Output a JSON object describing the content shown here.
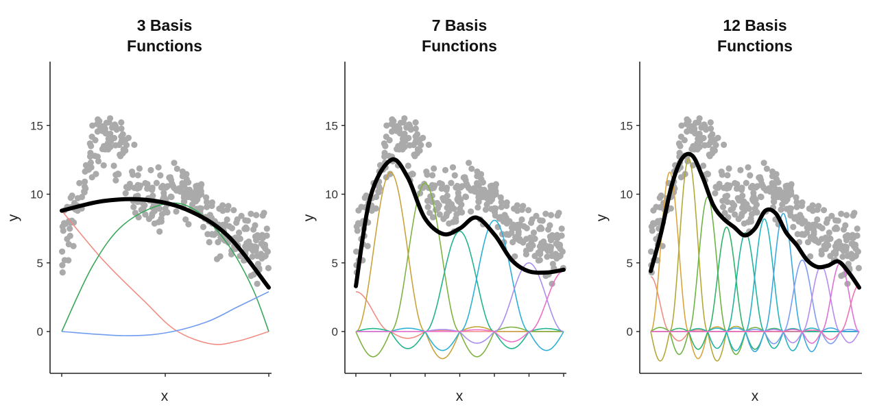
{
  "chart_data": [
    {
      "type": "line",
      "title_line1": "3 Basis",
      "title_line2": "Functions",
      "xlabel": "x",
      "ylabel": "y",
      "ylim": [
        -3,
        19.5
      ],
      "y_ticks": [
        0,
        5,
        10,
        15
      ],
      "x_ticks": 3,
      "grid": false,
      "legend": "none",
      "n_basis": 3,
      "fit_color": "#000000",
      "fit": [
        [
          0,
          8.8
        ],
        [
          0.2,
          9.5
        ],
        [
          0.4,
          9.6
        ],
        [
          0.6,
          8.9
        ],
        [
          0.8,
          7.0
        ],
        [
          1,
          3.2
        ]
      ],
      "basis": [
        {
          "color": "#f08c82",
          "values": [
            [
              0,
              8.8
            ],
            [
              0.2,
              5.2
            ],
            [
              0.4,
              2.2
            ],
            [
              0.55,
              0.1
            ],
            [
              0.72,
              -0.9
            ],
            [
              0.85,
              -0.7
            ],
            [
              1,
              0
            ]
          ]
        },
        {
          "color": "#3aa85a",
          "values": [
            [
              0,
              0
            ],
            [
              0.15,
              4.8
            ],
            [
              0.3,
              7.8
            ],
            [
              0.5,
              9.3
            ],
            [
              0.65,
              8.8
            ],
            [
              0.8,
              6.4
            ],
            [
              0.92,
              3.2
            ],
            [
              1,
              0
            ]
          ]
        },
        {
          "color": "#6f9bf0",
          "values": [
            [
              0,
              0
            ],
            [
              0.3,
              -0.3
            ],
            [
              0.5,
              -0.1
            ],
            [
              0.7,
              0.7
            ],
            [
              0.85,
              1.8
            ],
            [
              1,
              2.9
            ]
          ]
        }
      ]
    },
    {
      "type": "line",
      "title_line1": "7 Basis",
      "title_line2": "Functions",
      "xlabel": "x",
      "ylabel": "y",
      "ylim": [
        -3,
        19.5
      ],
      "y_ticks": [
        0,
        5,
        10,
        15
      ],
      "x_ticks": 7,
      "grid": false,
      "legend": "none",
      "n_basis": 7,
      "fit_color": "#000000",
      "fit": [
        [
          0,
          3.3
        ],
        [
          0.07,
          9.8
        ],
        [
          0.17,
          12.5
        ],
        [
          0.25,
          11.2
        ],
        [
          0.33,
          8.3
        ],
        [
          0.42,
          7.1
        ],
        [
          0.5,
          7.5
        ],
        [
          0.58,
          8.3
        ],
        [
          0.67,
          7.0
        ],
        [
          0.75,
          5.2
        ],
        [
          0.83,
          4.4
        ],
        [
          0.92,
          4.3
        ],
        [
          1,
          4.5
        ]
      ],
      "basis": [
        {
          "color": "#f08c82",
          "peak": 0.0,
          "amp": 2.9
        },
        {
          "color": "#c9a23a",
          "peak": 0.167,
          "amp": 11.6
        },
        {
          "color": "#7fb241",
          "peak": 0.333,
          "amp": 10.8
        },
        {
          "color": "#20b48c",
          "peak": 0.5,
          "amp": 7.3
        },
        {
          "color": "#2cb0d6",
          "peak": 0.667,
          "amp": 8.1
        },
        {
          "color": "#a98ef0",
          "peak": 0.833,
          "amp": 5.0
        },
        {
          "color": "#ec70c8",
          "peak": 1.0,
          "amp": 4.4
        }
      ]
    },
    {
      "type": "line",
      "title_line1": "12 Basis",
      "title_line2": "Functions",
      "xlabel": "x",
      "ylabel": "y",
      "ylim": [
        -3,
        19.5
      ],
      "y_ticks": [
        0,
        5,
        10,
        15
      ],
      "x_ticks": 0,
      "grid": false,
      "legend": "none",
      "n_basis": 12,
      "fit_color": "#000000",
      "fit": [
        [
          0,
          4.4
        ],
        [
          0.05,
          7.2
        ],
        [
          0.1,
          10.6
        ],
        [
          0.15,
          12.6
        ],
        [
          0.2,
          12.8
        ],
        [
          0.25,
          11.2
        ],
        [
          0.3,
          9.2
        ],
        [
          0.35,
          8.2
        ],
        [
          0.4,
          7.6
        ],
        [
          0.45,
          7.0
        ],
        [
          0.5,
          7.5
        ],
        [
          0.55,
          8.8
        ],
        [
          0.6,
          8.6
        ],
        [
          0.65,
          7.2
        ],
        [
          0.7,
          6.3
        ],
        [
          0.75,
          5.2
        ],
        [
          0.8,
          4.7
        ],
        [
          0.85,
          4.8
        ],
        [
          0.9,
          5.1
        ],
        [
          0.95,
          4.3
        ],
        [
          1,
          3.2
        ]
      ],
      "basis": [
        {
          "color": "#f08c82",
          "peak": 0.0,
          "amp": 4.0
        },
        {
          "color": "#d9a53a",
          "peak": 0.091,
          "amp": 11.6
        },
        {
          "color": "#b3a836",
          "peak": 0.182,
          "amp": 12.6
        },
        {
          "color": "#6db442",
          "peak": 0.273,
          "amp": 9.8
        },
        {
          "color": "#2fb36a",
          "peak": 0.364,
          "amp": 7.6
        },
        {
          "color": "#1fb39e",
          "peak": 0.455,
          "amp": 7.2
        },
        {
          "color": "#22b4c0",
          "peak": 0.545,
          "amp": 8.2
        },
        {
          "color": "#3aa8e0",
          "peak": 0.636,
          "amp": 8.6
        },
        {
          "color": "#7c9cf4",
          "peak": 0.727,
          "amp": 5.2
        },
        {
          "color": "#b58bf0",
          "peak": 0.818,
          "amp": 4.8
        },
        {
          "color": "#e070d6",
          "peak": 0.909,
          "amp": 5.0
        },
        {
          "color": "#f072b0",
          "peak": 1.0,
          "amp": 3.4
        }
      ]
    }
  ]
}
